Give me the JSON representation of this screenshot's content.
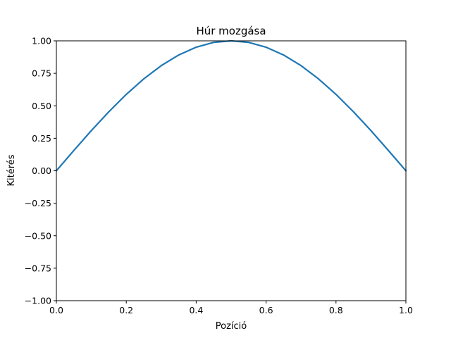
{
  "chart_data": {
    "type": "line",
    "title": "Húr mozgása",
    "xlabel": "Pozíció",
    "ylabel": "Kitérés",
    "xlim": [
      0.0,
      1.0
    ],
    "ylim": [
      -1.0,
      1.0
    ],
    "grid": false,
    "x_ticks": [
      "0.0",
      "0.2",
      "0.4",
      "0.6",
      "0.8",
      "1.0"
    ],
    "y_ticks": [
      "−1.00",
      "−0.75",
      "−0.50",
      "−0.25",
      "0.00",
      "0.25",
      "0.50",
      "0.75",
      "1.00"
    ],
    "series": [
      {
        "color": "#1f77b4",
        "x": [
          0.0,
          0.05,
          0.1,
          0.15,
          0.2,
          0.25,
          0.3,
          0.35,
          0.4,
          0.45,
          0.5,
          0.55,
          0.6,
          0.65,
          0.7,
          0.75,
          0.8,
          0.85,
          0.9,
          0.95,
          1.0
        ],
        "y": [
          0.0,
          0.156,
          0.309,
          0.454,
          0.588,
          0.707,
          0.809,
          0.891,
          0.951,
          0.988,
          1.0,
          0.988,
          0.951,
          0.891,
          0.809,
          0.707,
          0.588,
          0.454,
          0.309,
          0.156,
          0.0
        ]
      }
    ]
  }
}
